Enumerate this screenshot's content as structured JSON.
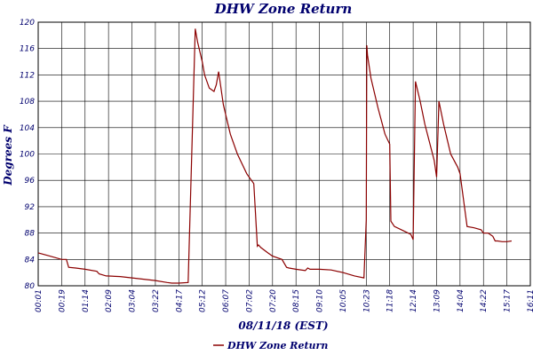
{
  "chart_data": {
    "type": "line",
    "title": "DHW Zone Return",
    "xlabel": "08/11/18 (EST)",
    "ylabel": "Degrees F",
    "ylim": [
      80,
      120
    ],
    "y_ticks": [
      80,
      84,
      88,
      92,
      96,
      100,
      104,
      108,
      112,
      116,
      120
    ],
    "x_ticks": [
      "00:01",
      "00:19",
      "01:14",
      "02:09",
      "03:04",
      "03:22",
      "04:17",
      "05:12",
      "06:07",
      "07:02",
      "07:20",
      "08:15",
      "09:10",
      "10:05",
      "10:23",
      "11:18",
      "12:14",
      "13:09",
      "14:04",
      "14:22",
      "15:17",
      "16:11"
    ],
    "grid": true,
    "legend": "bottom-center",
    "series": [
      {
        "name": "DHW Zone Return",
        "color": "#8b0000",
        "x": [
          0.0,
          0.5,
          1.0,
          1.2,
          1.3,
          1.6,
          2.0,
          2.5,
          2.6,
          2.9,
          3.5,
          4.0,
          4.5,
          5.0,
          5.5,
          5.7,
          6.0,
          6.4,
          6.7,
          6.8,
          7.0,
          7.1,
          7.3,
          7.5,
          7.6,
          7.7,
          7.9,
          8.0,
          8.2,
          8.5,
          8.9,
          9.2,
          9.35,
          9.4,
          9.5,
          9.8,
          10.0,
          10.4,
          10.6,
          10.7,
          11.0,
          11.4,
          11.5,
          11.6,
          12.0,
          12.5,
          13.0,
          13.5,
          13.9,
          14.0,
          14.02,
          14.05,
          14.2,
          14.5,
          14.8,
          15.0,
          15.05,
          15.2,
          15.5,
          15.9,
          16.0,
          16.1,
          16.3,
          16.5,
          16.9,
          17.0,
          17.1,
          17.3,
          17.6,
          17.9,
          18.0,
          18.3,
          18.6,
          18.9,
          19.0,
          19.2,
          19.4,
          19.5,
          19.6,
          19.8,
          20.0,
          20.2
        ],
        "values": [
          85.0,
          84.5,
          84.0,
          84.0,
          82.8,
          82.7,
          82.5,
          82.2,
          81.8,
          81.5,
          81.4,
          81.2,
          81.0,
          80.8,
          80.5,
          80.4,
          80.4,
          80.5,
          119.0,
          117.0,
          114.0,
          112.0,
          110.0,
          109.5,
          110.5,
          112.5,
          107.5,
          106.0,
          103.0,
          100.0,
          97.0,
          95.5,
          86.0,
          86.2,
          85.8,
          85.0,
          84.5,
          84.0,
          82.8,
          82.7,
          82.5,
          82.3,
          82.7,
          82.5,
          82.5,
          82.4,
          82.0,
          81.5,
          81.2,
          90.0,
          116.5,
          115.0,
          111.5,
          107.0,
          103.0,
          101.5,
          89.8,
          89.0,
          88.5,
          87.8,
          87.0,
          111.0,
          108.0,
          104.5,
          99.0,
          96.5,
          108.0,
          104.5,
          100.0,
          98.0,
          97.0,
          89.0,
          88.8,
          88.5,
          88.0,
          88.0,
          87.5,
          86.8,
          86.8,
          86.7,
          86.7,
          86.8
        ]
      }
    ]
  }
}
